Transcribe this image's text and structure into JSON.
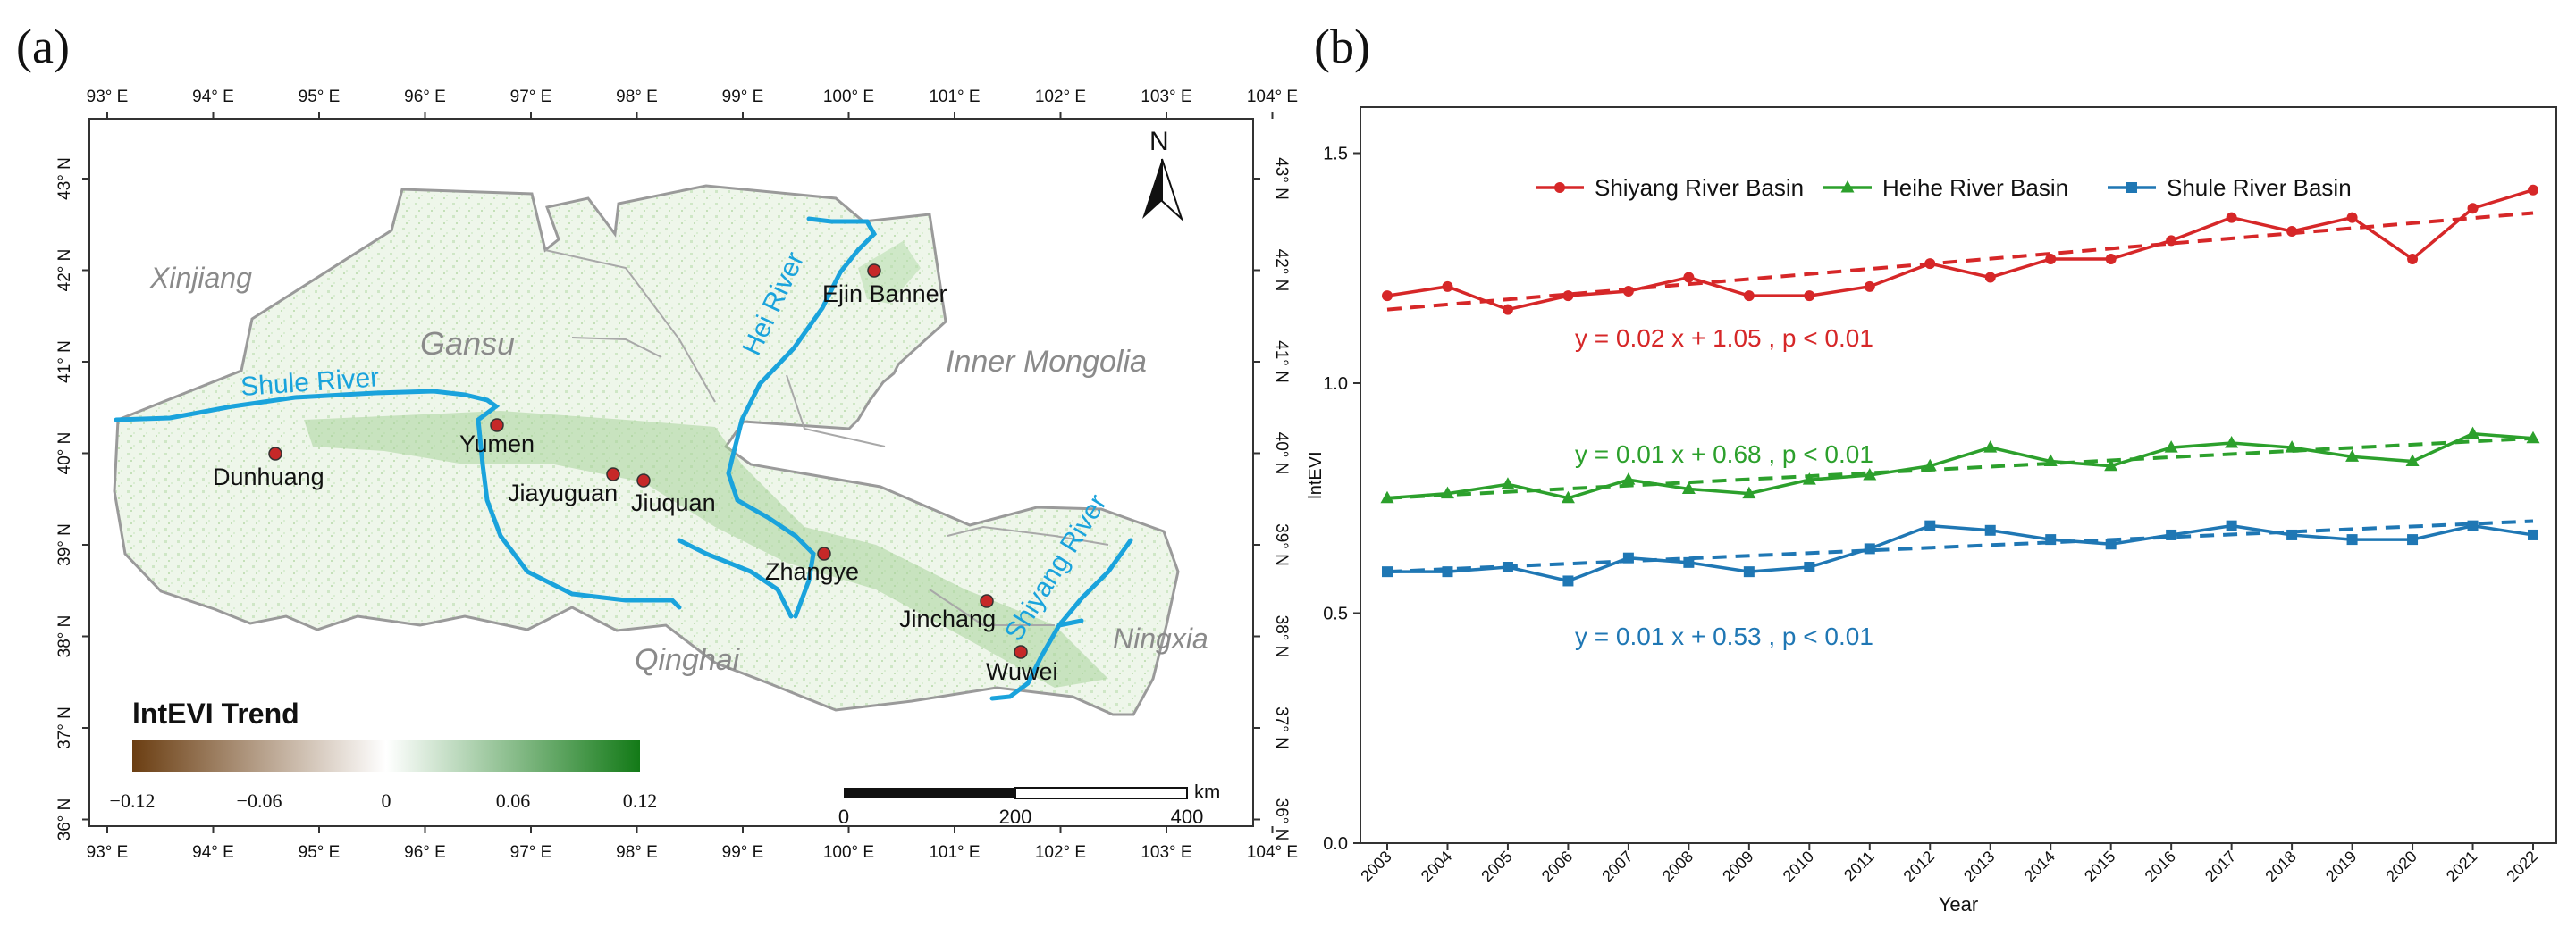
{
  "panel_a": {
    "label": "(a)",
    "north": "N",
    "lon_ticks": [
      "93° E",
      "94° E",
      "95° E",
      "96° E",
      "97° E",
      "98° E",
      "99° E",
      "100° E",
      "101° E",
      "102° E",
      "103° E",
      "104° E"
    ],
    "lat_ticks": [
      "43° N",
      "42° N",
      "41° N",
      "40° N",
      "39° N",
      "38° N",
      "37° N",
      "36° N"
    ],
    "regions": [
      "Xinjiang",
      "Gansu",
      "Inner Mongolia",
      "Qinghai",
      "Ningxia"
    ],
    "rivers": [
      "Shule River",
      "Hei River",
      "Shiyang River"
    ],
    "cities": [
      "Dunhuang",
      "Yumen",
      "Jiayuguan",
      "Jiuquan",
      "Zhangye",
      "Ejin Banner",
      "Jinchang",
      "Wuwei"
    ],
    "legend": {
      "title": "lntEVI Trend",
      "ticks": [
        "−0.12",
        "−0.06",
        "0",
        "0.06",
        "0.12"
      ],
      "low_color": "#6b3e12",
      "mid_color": "#ffffff",
      "high_color": "#137a17"
    },
    "scalebar": {
      "ticks": [
        "0",
        "200",
        "400"
      ],
      "unit": "km"
    }
  },
  "chart_data": {
    "label": "(b)",
    "type": "line",
    "title": "",
    "xlabel": "Year",
    "ylabel": "lntEVI",
    "ylim": [
      0.0,
      1.6
    ],
    "yticks": [
      "0.0",
      "0.5",
      "1.0",
      "1.5"
    ],
    "x": [
      "2003",
      "2004",
      "2005",
      "2006",
      "2007",
      "2008",
      "2009",
      "2010",
      "2011",
      "2012",
      "2013",
      "2014",
      "2015",
      "2016",
      "2017",
      "2018",
      "2019",
      "2020",
      "2021",
      "2022"
    ],
    "series": [
      {
        "name": "Shiyang River Basin",
        "color": "#d62728",
        "marker": "circle",
        "values": [
          1.19,
          1.21,
          1.16,
          1.19,
          1.2,
          1.23,
          1.19,
          1.19,
          1.21,
          1.26,
          1.23,
          1.27,
          1.27,
          1.31,
          1.36,
          1.33,
          1.36,
          1.27,
          1.38,
          1.42
        ],
        "fit": {
          "start": 1.16,
          "end": 1.37
        },
        "equation": "y =  0.02 x + 1.05 , p  < 0.01"
      },
      {
        "name": "Heihe River Basin",
        "color": "#2ca02c",
        "marker": "triangle",
        "values": [
          0.75,
          0.76,
          0.78,
          0.75,
          0.79,
          0.77,
          0.76,
          0.79,
          0.8,
          0.82,
          0.86,
          0.83,
          0.82,
          0.86,
          0.87,
          0.86,
          0.84,
          0.83,
          0.89,
          0.88
        ],
        "fit": {
          "start": 0.75,
          "end": 0.88
        },
        "equation": "y =  0.01 x + 0.68 , p  < 0.01"
      },
      {
        "name": "Shule River Basin",
        "color": "#1f77b4",
        "marker": "square",
        "values": [
          0.59,
          0.59,
          0.6,
          0.57,
          0.62,
          0.61,
          0.59,
          0.6,
          0.64,
          0.69,
          0.68,
          0.66,
          0.65,
          0.67,
          0.69,
          0.67,
          0.66,
          0.66,
          0.69,
          0.67
        ],
        "fit": {
          "start": 0.59,
          "end": 0.7
        },
        "equation": "y =  0.01 x + 0.53 , p  < 0.01"
      }
    ],
    "legend": "top"
  }
}
